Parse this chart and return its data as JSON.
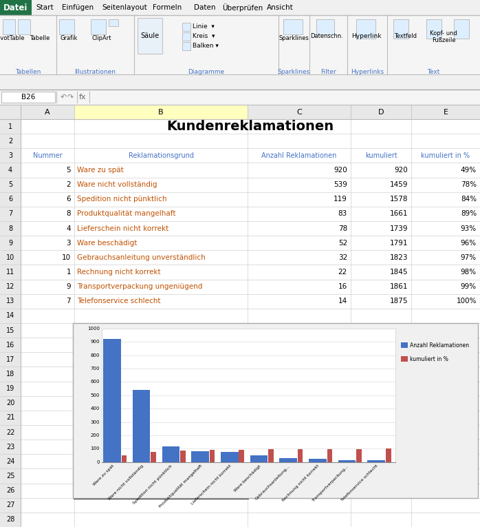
{
  "title": "Kundenreklamationen",
  "headers": [
    "Nummer",
    "Reklamationsgrund",
    "Anzahl Reklamationen",
    "kumuliert",
    "kumuliert in %"
  ],
  "rows": [
    [
      5,
      "Ware zu spät",
      920,
      920,
      "49%"
    ],
    [
      2,
      "Ware nicht vollständig",
      539,
      1459,
      "78%"
    ],
    [
      6,
      "Spedition nicht pünktlich",
      119,
      1578,
      "84%"
    ],
    [
      8,
      "Produktqualität mangelhaft",
      83,
      1661,
      "89%"
    ],
    [
      4,
      "Lieferschein nicht korrekt",
      78,
      1739,
      "93%"
    ],
    [
      3,
      "Ware beschädigt",
      52,
      1791,
      "96%"
    ],
    [
      10,
      "Gebrauchsanleitung unverständlich",
      32,
      1823,
      "97%"
    ],
    [
      1,
      "Rechnung nicht korrekt",
      22,
      1845,
      "98%"
    ],
    [
      9,
      "Transportverpackung ungeniügend",
      16,
      1861,
      "99%"
    ],
    [
      7,
      "Telefonservice schlecht",
      14,
      1875,
      "100%"
    ]
  ],
  "bar_values": [
    920,
    539,
    119,
    83,
    78,
    52,
    32,
    22,
    16,
    14
  ],
  "kum_pct_values": [
    49,
    78,
    84,
    89,
    93,
    96,
    97,
    98,
    99,
    100
  ],
  "bar_labels": [
    "Ware zu spät",
    "Ware nicht vollständig",
    "Spedition nicht pünktlich",
    "Produktqualität mangelhaft",
    "Lieferschein nicht korrekt",
    "Ware beschädigt",
    "Gebrauchsanleitung...",
    "Rechnung nicht korrekt",
    "Transportverpackung...",
    "Telefonservice schlecht"
  ],
  "bar_color": "#4472C4",
  "kum_color": "#C0504D",
  "row_text_color": "#C05000",
  "header_text_color": "#4472C4",
  "ribbon_green": "#217346",
  "grid_line_color": "#D0D0D0",
  "row_header_bg": "#E8E8E8",
  "col_header_bg": "#E8E8E8",
  "formula_bar_bg": "#F5F5F5",
  "ribbon_bg": "#F0F0F0",
  "chart_outer_bg": "#F0F0F0",
  "chart_inner_bg": "#FFFFFF",
  "tab_bar_bg": "#DDEEFF",
  "selected_col_bg": "#FFFFC0",
  "ribbon_tab_bg": "#EEF4FB"
}
